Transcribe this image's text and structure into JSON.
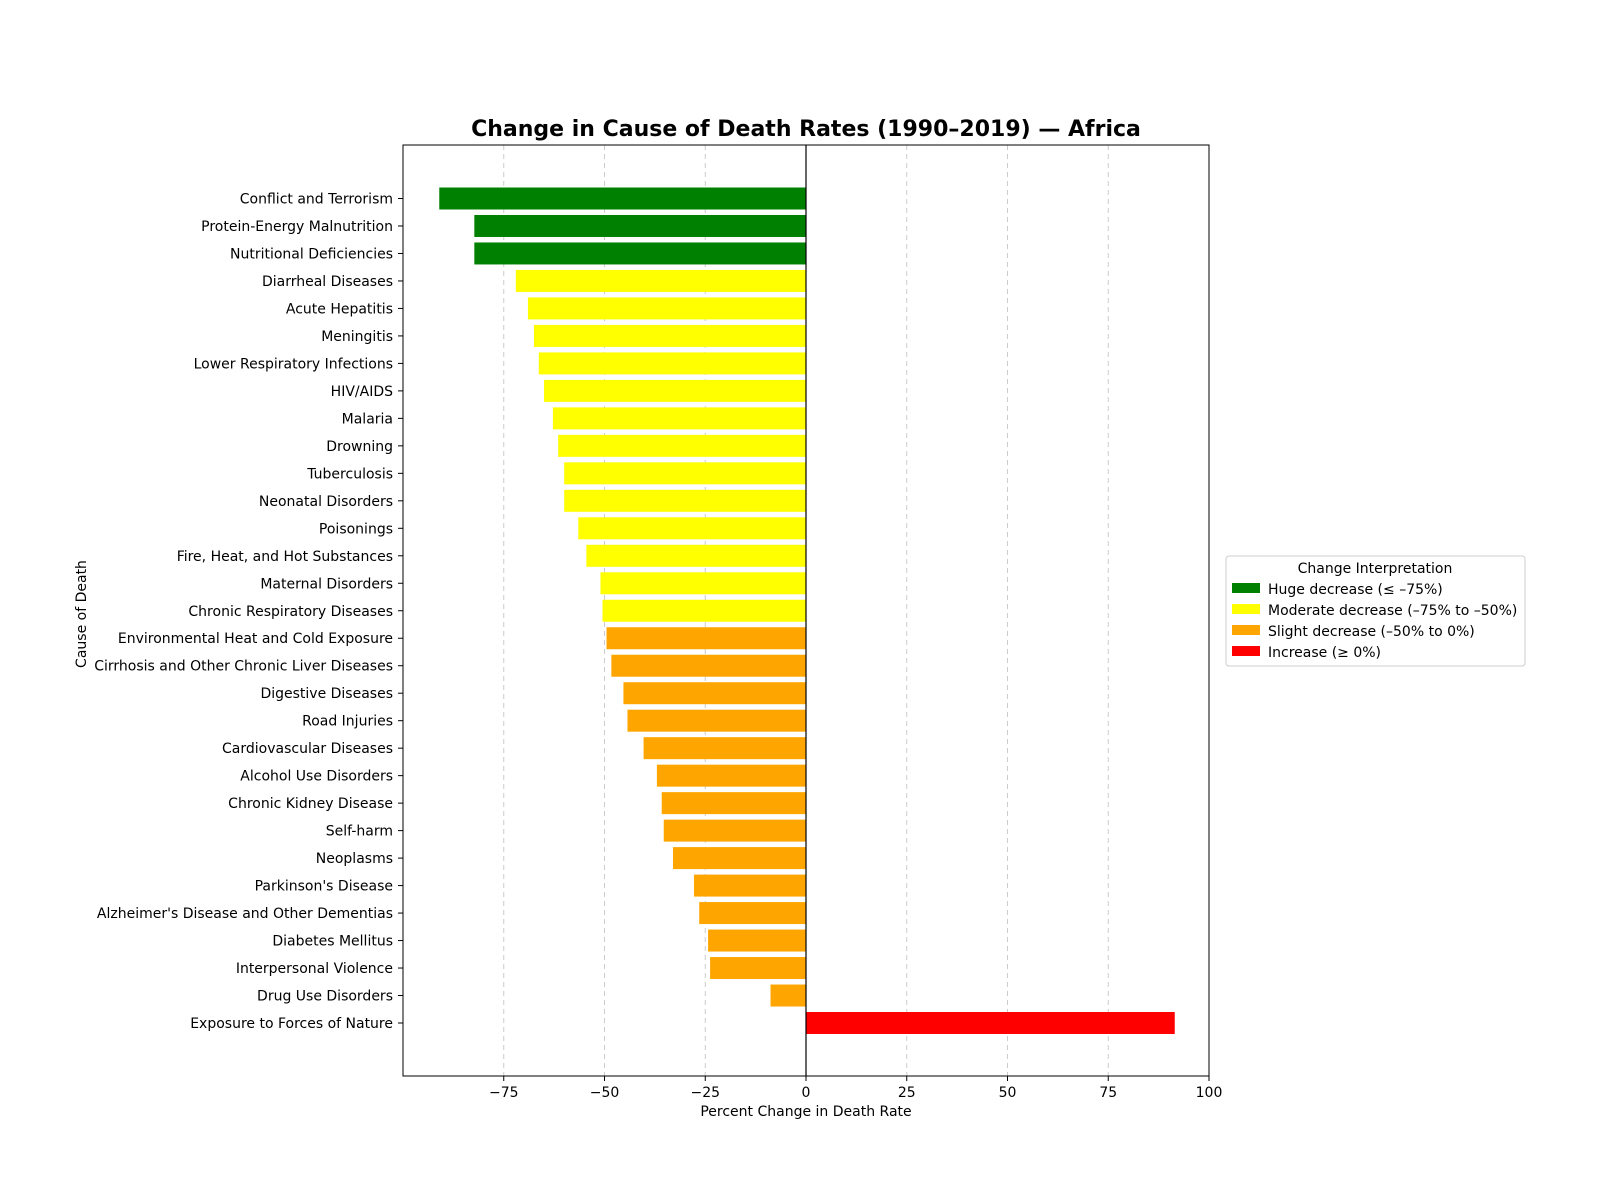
{
  "chart_data": {
    "type": "bar",
    "orientation": "horizontal",
    "title": "Change in Cause of Death Rates (1990–2019) — Africa",
    "xlabel": "Percent Change in Death Rate",
    "ylabel": "Cause of Death",
    "xlim": [
      -100,
      100
    ],
    "xticks": [
      -75,
      -50,
      -25,
      0,
      25,
      50,
      75,
      100
    ],
    "xtick_labels": [
      "−75",
      "−50",
      "−25",
      "0",
      "25",
      "50",
      "75",
      "100"
    ],
    "grid": "vertical dashed",
    "legend": {
      "title": "Change Interpretation",
      "placement": "right, outside plot",
      "entries": [
        {
          "label": "Huge decrease (≤ –75%)",
          "color": "#008000"
        },
        {
          "label": "Moderate decrease (–75% to –50%)",
          "color": "#ffff00"
        },
        {
          "label": "Slight decrease (–50% to 0%)",
          "color": "#ffa500"
        },
        {
          "label": "Increase (≥ 0%)",
          "color": "#ff0000"
        }
      ]
    },
    "categories": [
      "Conflict and Terrorism",
      "Protein-Energy Malnutrition",
      "Nutritional Deficiencies",
      "Diarrheal Diseases",
      "Acute Hepatitis",
      "Meningitis",
      "Lower Respiratory Infections",
      "HIV/AIDS",
      "Malaria",
      "Drowning",
      "Tuberculosis",
      "Neonatal Disorders",
      "Poisonings",
      "Fire, Heat, and Hot Substances",
      "Maternal Disorders",
      "Chronic Respiratory Diseases",
      "Environmental Heat and Cold Exposure",
      "Cirrhosis and Other Chronic Liver Diseases",
      "Digestive Diseases",
      "Road Injuries",
      "Cardiovascular Diseases",
      "Alcohol Use Disorders",
      "Chronic Kidney Disease",
      "Self-harm",
      "Neoplasms",
      "Parkinson's Disease",
      "Alzheimer's Disease and Other Dementias",
      "Diabetes Mellitus",
      "Interpersonal Violence",
      "Drug Use Disorders",
      "Exposure to Forces of Nature"
    ],
    "values": [
      -91,
      -82.3,
      -82.3,
      -72,
      -69,
      -67.5,
      -66.3,
      -65,
      -62.8,
      -61.5,
      -60,
      -60,
      -56.5,
      -54.5,
      -51,
      -50.5,
      -49.5,
      -48.3,
      -45.3,
      -44.3,
      -40.3,
      -37,
      -35.8,
      -35.3,
      -33,
      -27.8,
      -26.5,
      -24.3,
      -23.8,
      -8.8,
      91.5
    ],
    "colors": [
      "#008000",
      "#008000",
      "#008000",
      "#ffff00",
      "#ffff00",
      "#ffff00",
      "#ffff00",
      "#ffff00",
      "#ffff00",
      "#ffff00",
      "#ffff00",
      "#ffff00",
      "#ffff00",
      "#ffff00",
      "#ffff00",
      "#ffff00",
      "#ffa500",
      "#ffa500",
      "#ffa500",
      "#ffa500",
      "#ffa500",
      "#ffa500",
      "#ffa500",
      "#ffa500",
      "#ffa500",
      "#ffa500",
      "#ffa500",
      "#ffa500",
      "#ffa500",
      "#ffa500",
      "#ff0000"
    ]
  }
}
